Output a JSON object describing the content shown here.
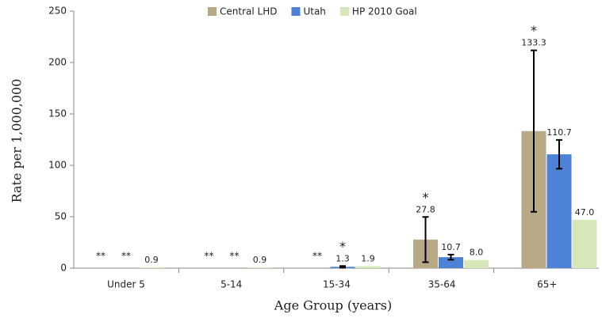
{
  "chart_data": {
    "type": "bar",
    "xlabel": "Age Group (years)",
    "ylabel": "Rate per 1,000,000",
    "categories": [
      "Under 5",
      "5-14",
      "15-34",
      "35-64",
      "65+"
    ],
    "series": [
      {
        "name": "Central LHD",
        "color": "#b7a886",
        "values": [
          null,
          null,
          null,
          27.8,
          133.3
        ],
        "value_labels": [
          "**",
          "**",
          "**",
          "27.8",
          "133.3"
        ],
        "errors": [
          null,
          null,
          null,
          22,
          78.5
        ],
        "significance": [
          null,
          null,
          null,
          "*",
          "*"
        ]
      },
      {
        "name": "Utah",
        "color": "#4d82d6",
        "values": [
          null,
          null,
          1.3,
          10.7,
          110.7
        ],
        "value_labels": [
          "**",
          "**",
          "1.3",
          "10.7",
          "110.7"
        ],
        "errors": [
          null,
          null,
          0.8,
          2.5,
          14
        ],
        "significance": [
          null,
          null,
          "*",
          null,
          null
        ]
      },
      {
        "name": "HP 2010 Goal",
        "color": "#d6e7b9",
        "values": [
          0.9,
          0.9,
          1.9,
          8.0,
          47.0
        ],
        "value_labels": [
          "0.9",
          "0.9",
          "1.9",
          "8.0",
          "47.0"
        ],
        "errors": [
          null,
          null,
          null,
          null,
          null
        ],
        "significance": [
          null,
          null,
          null,
          null,
          null
        ]
      }
    ],
    "ylim": [
      0,
      250
    ],
    "yticks": [
      0,
      50,
      100,
      150,
      200,
      250
    ],
    "grid": false,
    "legend": "top"
  }
}
